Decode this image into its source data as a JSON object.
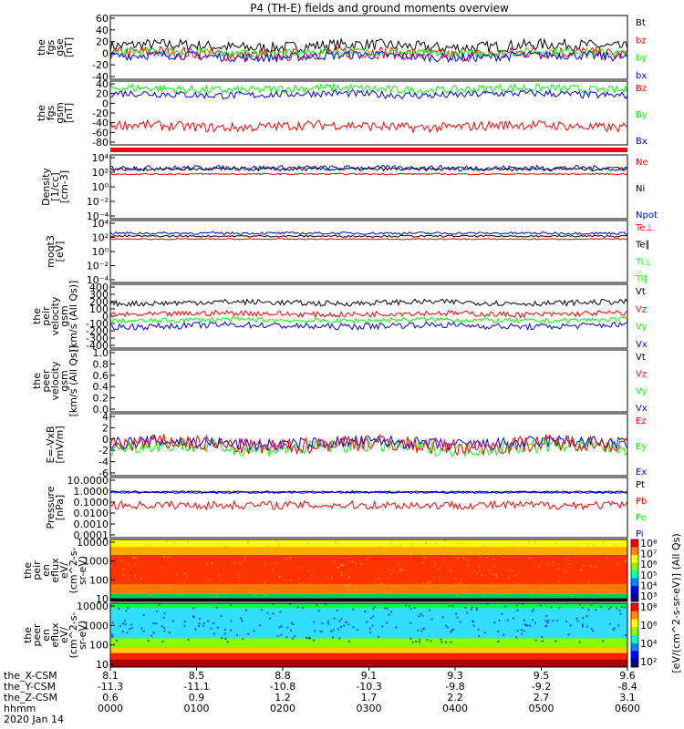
{
  "title": "P4 (TH-E) fields and ground moments overview",
  "colors": {
    "black": "#000000",
    "red": "#ff0000",
    "green": "#00ff00",
    "blue": "#0000ff",
    "axis": "#000000",
    "background": "#ffffff"
  },
  "chart_data": [
    {
      "id": "fgs",
      "type": "line",
      "ylabel": [
        "the",
        "fgs",
        "gse",
        "[nT]"
      ],
      "ylim": [
        -40,
        60
      ],
      "yticks": [
        "60",
        "40",
        "20",
        "0",
        "-20",
        "-40"
      ],
      "legend": [
        {
          "name": "Bt",
          "color": "#000000"
        },
        {
          "name": "bz",
          "color": "#ff0000"
        },
        {
          "name": "by",
          "color": "#00ff00"
        },
        {
          "name": "bx",
          "color": "#0000ff"
        }
      ],
      "series": [
        {
          "name": "Bt",
          "color": "#000000",
          "level": 12,
          "noise": 9
        },
        {
          "name": "bz",
          "color": "#ff0000",
          "level": 0,
          "noise": 10
        },
        {
          "name": "by",
          "color": "#00ff00",
          "level": 2,
          "noise": 6
        },
        {
          "name": "bx",
          "color": "#0000ff",
          "level": -4,
          "noise": 7
        }
      ]
    },
    {
      "id": "fgs-gsm",
      "type": "line",
      "ylabel": [
        "the",
        "fgs",
        "gsm",
        "[nT]"
      ],
      "ylim": [
        -80,
        40
      ],
      "yticks": [
        "40",
        "20",
        "0",
        "-20",
        "-40",
        "-60",
        "-80"
      ],
      "legend": [
        {
          "name": "Bz",
          "color": "#ff0000"
        },
        {
          "name": "By",
          "color": "#00ff00"
        },
        {
          "name": "Bx",
          "color": "#0000ff"
        }
      ],
      "series": [
        {
          "name": "By",
          "color": "#00ff00",
          "level": 25,
          "noise": 8
        },
        {
          "name": "Bx",
          "color": "#0000ff",
          "level": 15,
          "noise": 7
        },
        {
          "name": "Bz",
          "color": "#ff0000",
          "level": -45,
          "noise": 9
        }
      ]
    },
    {
      "id": "density",
      "type": "line",
      "scale": "log",
      "ylabel": [
        "Density",
        "[1/cc]",
        "[cm-3]"
      ],
      "ylim": [
        1e-05,
        10000.0
      ],
      "yticks": [
        "10⁴",
        "10²",
        "10⁰",
        "10⁻²",
        "10⁻⁴"
      ],
      "legend": [
        {
          "name": "Ne",
          "color": "#ff0000"
        },
        {
          "name": "Ni",
          "color": "#000000"
        },
        {
          "name": "Npot",
          "color": "#0000ff"
        }
      ],
      "series": [
        {
          "name": "Npot",
          "color": "#0000ff",
          "level": 150,
          "noise": 0.35
        },
        {
          "name": "Ni",
          "color": "#000000",
          "level": 100,
          "noise": 0.25
        },
        {
          "name": "Ne",
          "color": "#ff0000",
          "level": 20,
          "noise": 0.1
        }
      ]
    },
    {
      "id": "temp",
      "type": "line",
      "scale": "log",
      "ylabel": [
        "moqt3",
        "[eV]"
      ],
      "ylim": [
        1e-05,
        100000.0
      ],
      "yticks": [
        "10⁴",
        "10²",
        "10⁰",
        "10⁻²",
        "10⁻⁴"
      ],
      "legend": [
        {
          "name": "Te⊥",
          "color": "#ff0000"
        },
        {
          "name": "Te∥",
          "color": "#000000"
        },
        {
          "name": "Ti⊥",
          "color": "#00ff00"
        },
        {
          "name": "Ti∥",
          "color": "#00ff00"
        }
      ],
      "series": [
        {
          "name": "Ti∥",
          "color": "#0000ff",
          "level": 900,
          "noise": 0.2
        },
        {
          "name": "Te∥",
          "color": "#000000",
          "level": 300,
          "noise": 0.15
        },
        {
          "name": "Te⊥",
          "color": "#ff0000",
          "level": 100,
          "noise": 0.1
        }
      ]
    },
    {
      "id": "peir-velocity",
      "type": "line",
      "ylabel": [
        "the",
        "peir",
        "velocity",
        "gsm",
        "[km/s (All Qs)]"
      ],
      "ylim": [
        -400,
        400
      ],
      "yticks": [
        "400",
        "300",
        "200",
        "100",
        "0",
        "-100",
        "-200",
        "-300",
        "-400"
      ],
      "legend": [
        {
          "name": "Vt",
          "color": "#000000"
        },
        {
          "name": "Vz",
          "color": "#ff0000"
        },
        {
          "name": "Vy",
          "color": "#00ff00"
        },
        {
          "name": "Vx",
          "color": "#0000ff"
        }
      ],
      "series": [
        {
          "name": "Vt",
          "color": "#000000",
          "level": 170,
          "noise": 35
        },
        {
          "name": "Vz",
          "color": "#ff0000",
          "level": 30,
          "noise": 35
        },
        {
          "name": "Vy",
          "color": "#00ff00",
          "level": -50,
          "noise": 30
        },
        {
          "name": "Vx",
          "color": "#0000ff",
          "level": -120,
          "noise": 40
        }
      ]
    },
    {
      "id": "peer-velocity",
      "type": "line",
      "ylabel": [
        "the",
        "peer",
        "velocity",
        "gsm",
        "[km/s (All Qs)]"
      ],
      "ylim": [
        0,
        1
      ],
      "yticks": [
        "1.0",
        "0.8",
        "0.6",
        "0.4",
        "0.2",
        "0.0"
      ],
      "legend": [
        {
          "name": "Vt",
          "color": "#000000"
        },
        {
          "name": "Vz",
          "color": "#ff0000"
        },
        {
          "name": "Vy",
          "color": "#00ff00"
        },
        {
          "name": "Vx",
          "color": "#0000ff"
        }
      ],
      "series": []
    },
    {
      "id": "efield",
      "type": "line",
      "ylabel": [
        "E=-VxB",
        "[mV/m]"
      ],
      "ylim": [
        -6,
        6
      ],
      "yticks": [
        "4",
        "2",
        "0",
        "-2",
        "-4",
        "-6"
      ],
      "legend": [
        {
          "name": "Ez",
          "color": "#ff0000"
        },
        {
          "name": "Ey",
          "color": "#00ff00"
        },
        {
          "name": "Ex",
          "color": "#0000ff"
        }
      ],
      "series": [
        {
          "name": "Ey",
          "color": "#00ff00",
          "level": -0.5,
          "noise": 1.4
        },
        {
          "name": "Ex",
          "color": "#0000ff",
          "level": 0.3,
          "noise": 1.2
        },
        {
          "name": "Ez",
          "color": "#ff0000",
          "level": 0.0,
          "noise": 1.6
        }
      ]
    },
    {
      "id": "pressure",
      "type": "line",
      "scale": "log",
      "ylabel": [
        "Pressure",
        "[nPa]"
      ],
      "ylim": [
        0.0001,
        10
      ],
      "yticks": [
        "10.0000",
        "1.0000",
        "0.1000",
        "0.0100",
        "0.0010",
        "0.0001"
      ],
      "legend": [
        {
          "name": "Pt",
          "color": "#000000"
        },
        {
          "name": "Pb",
          "color": "#ff0000"
        },
        {
          "name": "Pe",
          "color": "#00ff00"
        },
        {
          "name": "Pi",
          "color": "#0000ff"
        }
      ],
      "series": [
        {
          "name": "Pi",
          "color": "#0000ff",
          "level": 0.55,
          "noise": 0.06
        },
        {
          "name": "Pt",
          "color": "#000000",
          "level": 0.65,
          "noise": 0.06
        },
        {
          "name": "Pb",
          "color": "#ff0000",
          "level": 0.05,
          "noise": 0.35
        }
      ]
    },
    {
      "id": "peir-eflux",
      "type": "heatmap",
      "ylabel": [
        "the",
        "peir",
        "en",
        "eflux",
        "eV/",
        "(cm^2-s-",
        "sr-eV)"
      ],
      "ylim": [
        5,
        20000
      ],
      "yticks": [
        "10000",
        "1000",
        "100",
        "10"
      ],
      "colorbar_ticks": [
        "10⁸",
        "10⁷",
        "10⁶",
        "10⁵",
        "10⁴",
        "10³"
      ]
    },
    {
      "id": "peer-eflux",
      "type": "heatmap",
      "ylabel": [
        "the",
        "peer",
        "en",
        "eflux",
        "eV/",
        "(cm^2-s-",
        "sr-eV)"
      ],
      "ylim": [
        5,
        20000
      ],
      "yticks": [
        "10000",
        "1000",
        "100",
        "10"
      ],
      "colorbar_ticks": [
        "10⁸",
        "10⁶",
        "10⁴",
        "10²"
      ]
    }
  ],
  "colorbar_label": "[eV/(cm^2-s-sr-eV)] (All Qs)",
  "time_axis": {
    "rows": [
      {
        "label": "the_X-CSM",
        "values": [
          "8.1",
          "8.5",
          "8.8",
          "9.1",
          "9.3",
          "9.5",
          "9.6"
        ]
      },
      {
        "label": "the_Y-CSM",
        "values": [
          "-11.3",
          "-11.1",
          "-10.8",
          "-10.3",
          "-9.8",
          "-9.2",
          "-8.4"
        ]
      },
      {
        "label": "the_Z-CSM",
        "values": [
          "0.6",
          "0.9",
          "1.2",
          "1.7",
          "2.2",
          "2.7",
          "3.1"
        ]
      },
      {
        "label": "hhmm",
        "values": [
          "0000",
          "0100",
          "0200",
          "0300",
          "0400",
          "0500",
          "0600"
        ]
      }
    ],
    "date": "2020 Jan 14"
  }
}
